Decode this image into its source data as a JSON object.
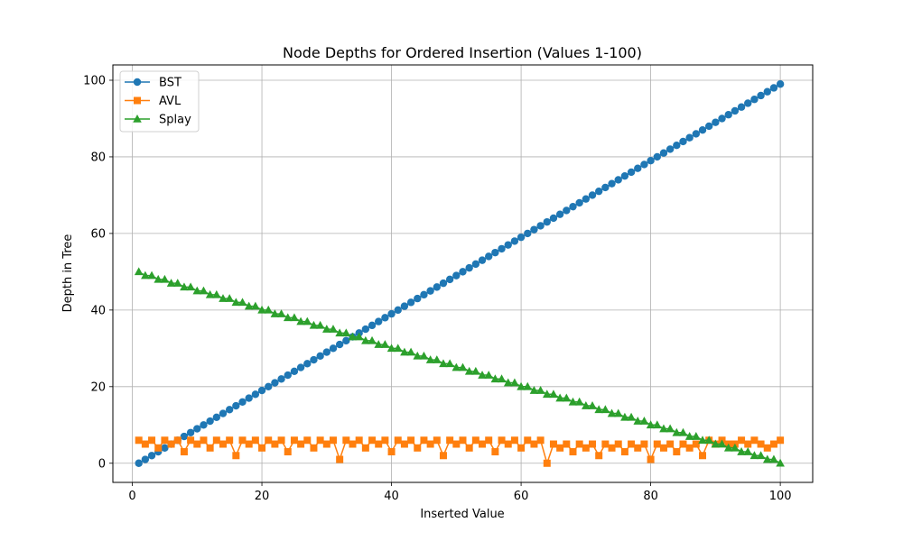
{
  "chart_data": {
    "type": "line",
    "title": "Node Depths for Ordered Insertion (Values 1-100)",
    "xlabel": "Inserted Value",
    "ylabel": "Depth in Tree",
    "xlim": [
      -3,
      105
    ],
    "ylim": [
      -5,
      104
    ],
    "xticks": [
      0,
      20,
      40,
      60,
      80,
      100
    ],
    "yticks": [
      0,
      20,
      40,
      60,
      80,
      100
    ],
    "grid": true,
    "legend_position": "top-left",
    "x_start": 1,
    "x_end": 100,
    "series": [
      {
        "name": "BST",
        "color": "#1f77b4",
        "marker": "circle",
        "values": [
          0,
          1,
          2,
          3,
          4,
          5,
          6,
          7,
          8,
          9,
          10,
          11,
          12,
          13,
          14,
          15,
          16,
          17,
          18,
          19,
          20,
          21,
          22,
          23,
          24,
          25,
          26,
          27,
          28,
          29,
          30,
          31,
          32,
          33,
          34,
          35,
          36,
          37,
          38,
          39,
          40,
          41,
          42,
          43,
          44,
          45,
          46,
          47,
          48,
          49,
          50,
          51,
          52,
          53,
          54,
          55,
          56,
          57,
          58,
          59,
          60,
          61,
          62,
          63,
          64,
          65,
          66,
          67,
          68,
          69,
          70,
          71,
          72,
          73,
          74,
          75,
          76,
          77,
          78,
          79,
          80,
          81,
          82,
          83,
          84,
          85,
          86,
          87,
          88,
          89,
          90,
          91,
          92,
          93,
          94,
          95,
          96,
          97,
          98,
          99
        ]
      },
      {
        "name": "AVL",
        "color": "#ff7f0e",
        "marker": "square",
        "values": [
          6,
          5,
          6,
          4,
          6,
          5,
          6,
          3,
          6,
          5,
          6,
          4,
          6,
          5,
          6,
          2,
          6,
          5,
          6,
          4,
          6,
          5,
          6,
          3,
          6,
          5,
          6,
          4,
          6,
          5,
          6,
          1,
          6,
          5,
          6,
          4,
          6,
          5,
          6,
          3,
          6,
          5,
          6,
          4,
          6,
          5,
          6,
          2,
          6,
          5,
          6,
          4,
          6,
          5,
          6,
          3,
          6,
          5,
          6,
          4,
          6,
          5,
          6,
          0,
          5,
          4,
          5,
          3,
          5,
          4,
          5,
          2,
          5,
          4,
          5,
          3,
          5,
          4,
          5,
          1,
          5,
          4,
          5,
          3,
          5,
          4,
          5,
          2,
          6,
          5,
          6,
          5,
          5,
          6,
          5,
          6,
          5,
          4,
          5,
          6
        ]
      },
      {
        "name": "Splay",
        "color": "#2ca02c",
        "marker": "triangle",
        "values": [
          50,
          49,
          49,
          48,
          48,
          47,
          47,
          46,
          46,
          45,
          45,
          44,
          44,
          43,
          43,
          42,
          42,
          41,
          41,
          40,
          40,
          39,
          39,
          38,
          38,
          37,
          37,
          36,
          36,
          35,
          35,
          34,
          34,
          33,
          33,
          32,
          32,
          31,
          31,
          30,
          30,
          29,
          29,
          28,
          28,
          27,
          27,
          26,
          26,
          25,
          25,
          24,
          24,
          23,
          23,
          22,
          22,
          21,
          21,
          20,
          20,
          19,
          19,
          18,
          18,
          17,
          17,
          16,
          16,
          15,
          15,
          14,
          14,
          13,
          13,
          12,
          12,
          11,
          11,
          10,
          10,
          9,
          9,
          8,
          8,
          7,
          7,
          6,
          6,
          5,
          5,
          4,
          4,
          3,
          3,
          2,
          2,
          1,
          1,
          0
        ]
      }
    ]
  }
}
